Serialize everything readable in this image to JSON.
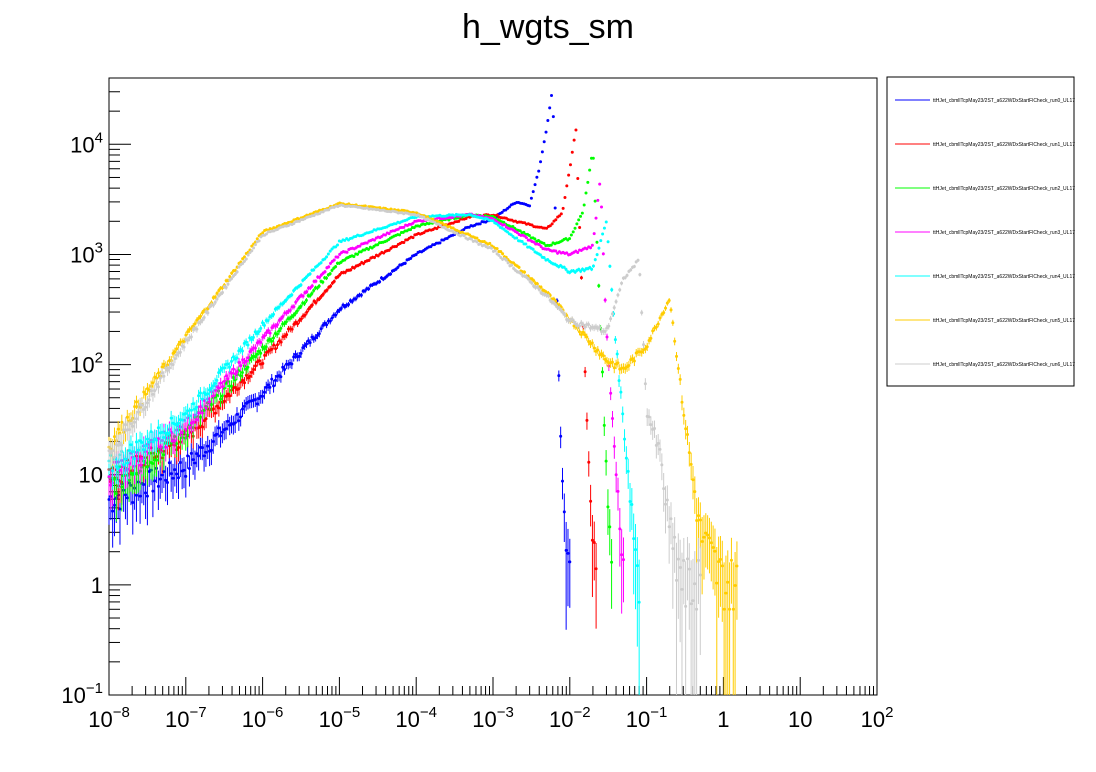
{
  "chart_data": {
    "type": "scatter",
    "title": "h_wgts_sm",
    "xlabel": "",
    "ylabel": "",
    "xscale": "log",
    "yscale": "log",
    "xlim": [
      1e-08,
      100
    ],
    "ylim": [
      0.1,
      40000
    ],
    "grid": false,
    "legend_position": "right",
    "x_tick_labels": [
      {
        "base": "10",
        "exp": "−8",
        "value": 1e-08
      },
      {
        "base": "10",
        "exp": "−7",
        "value": 1e-07
      },
      {
        "base": "10",
        "exp": "−6",
        "value": 1e-06
      },
      {
        "base": "10",
        "exp": "−5",
        "value": 1e-05
      },
      {
        "base": "10",
        "exp": "−4",
        "value": 0.0001
      },
      {
        "base": "10",
        "exp": "−3",
        "value": 0.001
      },
      {
        "base": "10",
        "exp": "−2",
        "value": 0.01
      },
      {
        "base": "10",
        "exp": "−1",
        "value": 0.1
      },
      {
        "base": "1",
        "exp": "",
        "value": 1
      },
      {
        "base": "10",
        "exp": "",
        "value": 10
      },
      {
        "base": "10",
        "exp": "2",
        "value": 100
      }
    ],
    "y_tick_labels": [
      {
        "base": "10",
        "exp": "−1",
        "value": 0.1
      },
      {
        "base": "1",
        "exp": "",
        "value": 1
      },
      {
        "base": "10",
        "exp": "",
        "value": 10
      },
      {
        "base": "10",
        "exp": "2",
        "value": 100
      },
      {
        "base": "10",
        "exp": "3",
        "value": 1000
      },
      {
        "base": "10",
        "exp": "4",
        "value": 10000
      }
    ],
    "series": [
      {
        "name": "ttHJet_cbmllTcpMay23/2ST_a622WDxStartFlCheck_run0_UL17",
        "color": "#0000ff",
        "x": [
          1e-08,
          1e-07,
          1e-06,
          1e-05,
          0.0001,
          0.0005,
          0.001,
          0.002,
          0.003,
          0.004,
          0.005,
          0.006,
          0.007,
          0.008,
          0.01
        ],
        "y": [
          6,
          12,
          55,
          320,
          1000,
          1800,
          2100,
          3000,
          2800,
          6000,
          14000,
          33000,
          150,
          8,
          1
        ]
      },
      {
        "name": "ttHJet_cbmllTcpMay23/2ST_a622WDxStartFlCheck_run1_UL17",
        "color": "#ff0000",
        "x": [
          1e-08,
          1e-07,
          1e-06,
          1e-05,
          0.0001,
          0.0005,
          0.001,
          0.002,
          0.005,
          0.008,
          0.01,
          0.012,
          0.015,
          0.018,
          0.022
        ],
        "y": [
          9,
          22,
          110,
          650,
          1500,
          2200,
          2300,
          2000,
          1700,
          2400,
          6000,
          14000,
          220,
          8,
          1
        ]
      },
      {
        "name": "ttHJet_cbmllTcpMay23/2ST_a622WDxStartFlCheck_run2_UL17",
        "color": "#00ff00",
        "x": [
          1e-08,
          1e-07,
          1e-06,
          1e-05,
          0.0001,
          0.0005,
          0.001,
          0.002,
          0.005,
          0.01,
          0.015,
          0.02,
          0.025,
          0.03,
          0.035
        ],
        "y": [
          8,
          25,
          140,
          850,
          1800,
          2300,
          2200,
          1700,
          1200,
          1400,
          2500,
          9000,
          250,
          10,
          1
        ]
      },
      {
        "name": "ttHJet_cbmllTcpMay23/2ST_a622WDxStartFlCheck_run3_UL17",
        "color": "#ff00ff",
        "x": [
          1e-08,
          1e-07,
          1e-06,
          1e-05,
          0.0001,
          0.0005,
          0.001,
          0.002,
          0.005,
          0.01,
          0.02,
          0.025,
          0.03,
          0.04,
          0.05
        ],
        "y": [
          10,
          28,
          170,
          1000,
          2000,
          2300,
          2100,
          1600,
          1100,
          1000,
          1200,
          5000,
          200,
          10,
          1
        ]
      },
      {
        "name": "ttHJet_cbmllTcpMay23/2ST_a622WDxStartFlCheck_run4_UL17",
        "color": "#00ffff",
        "x": [
          1e-08,
          1e-07,
          1e-06,
          1e-05,
          0.0001,
          0.0005,
          0.001,
          0.002,
          0.005,
          0.01,
          0.02,
          0.03,
          0.04,
          0.06,
          0.08
        ],
        "y": [
          12,
          35,
          230,
          1300,
          2200,
          2300,
          2000,
          1400,
          900,
          700,
          750,
          2000,
          150,
          8,
          1
        ]
      },
      {
        "name": "ttHJet_cbmllTcpMay23/2ST_a622WDxStartFlCheck_run5_UL17",
        "color": "#ffcc00",
        "x": [
          1e-08,
          1e-07,
          1e-06,
          1e-05,
          0.0001,
          0.001,
          0.005,
          0.01,
          0.03,
          0.05,
          0.1,
          0.2,
          0.3,
          0.5,
          1,
          1.5
        ],
        "y": [
          18,
          180,
          1600,
          2900,
          2400,
          1200,
          450,
          260,
          110,
          90,
          150,
          400,
          40,
          3,
          1,
          1
        ]
      },
      {
        "name": "ttHJet_cbmllTcpMay23/2ST_a622WDxStartFlCheck_run6_UL17",
        "color": "#cccccc",
        "x": [
          1e-08,
          1e-07,
          1e-06,
          1e-05,
          0.0001,
          0.001,
          0.005,
          0.01,
          0.03,
          0.05,
          0.08,
          0.1,
          0.15,
          0.2,
          0.3,
          0.5
        ],
        "y": [
          15,
          160,
          1500,
          2800,
          2300,
          1100,
          420,
          250,
          200,
          600,
          900,
          40,
          15,
          3,
          1,
          1
        ]
      }
    ]
  }
}
